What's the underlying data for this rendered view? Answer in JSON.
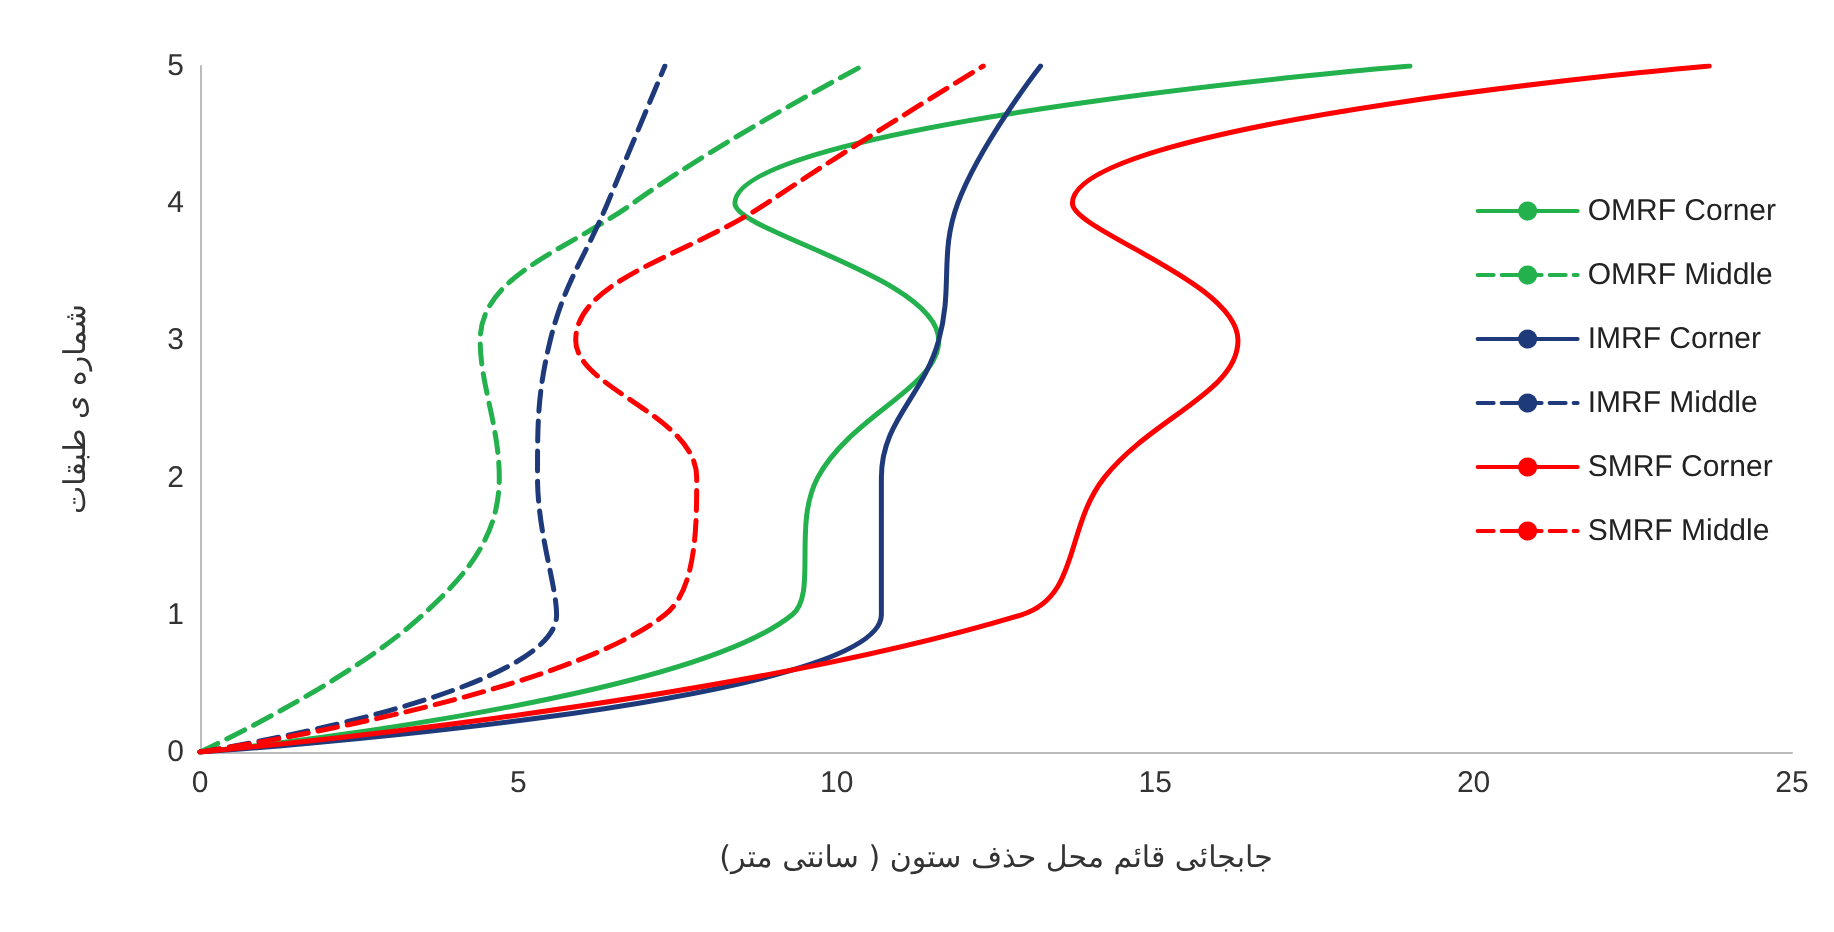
{
  "chart_data": {
    "type": "line",
    "xlabel": "جابجائی قائم محل حذف ستون ( سانتی متر)",
    "ylabel": "شماره ی طبقات",
    "xlim": [
      0,
      25
    ],
    "xticks": [
      0,
      5,
      10,
      15,
      20,
      25
    ],
    "ylim": [
      0,
      5
    ],
    "yticks": [
      0,
      1,
      2,
      3,
      4,
      5
    ],
    "grid": false,
    "legend": "right",
    "marker": "none",
    "series": [
      {
        "name": "OMRF Corner",
        "color": "#22b14c",
        "line_style": "solid",
        "x": [
          0,
          9.3,
          9.7,
          11.6,
          8.4,
          19.0
        ],
        "values": [
          0,
          1,
          2,
          3,
          4,
          5
        ]
      },
      {
        "name": "OMRF Middle",
        "color": "#22b14c",
        "line_style": "dashed",
        "x": [
          0,
          3.5,
          4.7,
          4.4,
          6.8,
          10.4
        ],
        "values": [
          0,
          1,
          2,
          3,
          4,
          5
        ]
      },
      {
        "name": "IMRF Corner",
        "color": "#1f3a7a",
        "line_style": "solid",
        "x": [
          0,
          10.7,
          10.7,
          11.6,
          11.9,
          13.2
        ],
        "values": [
          0,
          1,
          2,
          3,
          4,
          5
        ]
      },
      {
        "name": "IMRF Middle",
        "color": "#1f3a7a",
        "line_style": "dashed",
        "x": [
          0,
          5.6,
          5.3,
          5.5,
          6.4,
          7.3
        ],
        "values": [
          0,
          1,
          2,
          3,
          4,
          5
        ]
      },
      {
        "name": "SMRF Corner",
        "color": "#ff0000",
        "line_style": "solid",
        "x": [
          0,
          12.9,
          14.2,
          16.3,
          13.7,
          23.7
        ],
        "values": [
          0,
          1,
          2,
          3,
          4,
          5
        ]
      },
      {
        "name": "SMRF Middle",
        "color": "#ff0000",
        "line_style": "dashed",
        "x": [
          0,
          7.3,
          7.8,
          5.9,
          8.9,
          12.3
        ],
        "values": [
          0,
          1,
          2,
          3,
          4,
          5
        ]
      }
    ]
  }
}
